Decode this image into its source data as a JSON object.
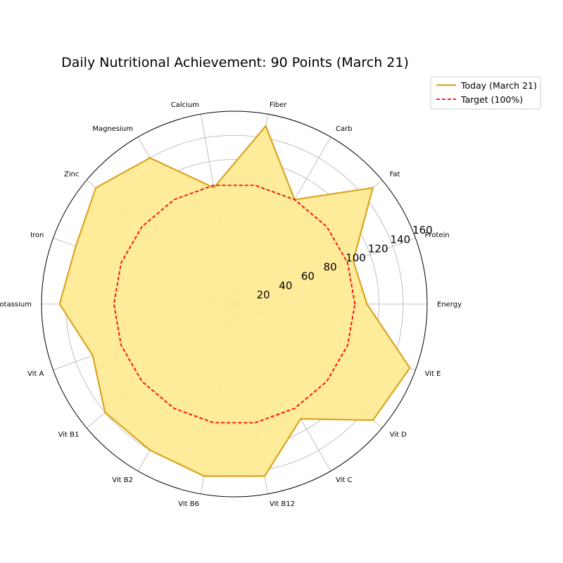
{
  "chart_data": {
    "type": "radar",
    "title": "Daily Nutritional Achievement: 90 Points (March 21)",
    "categories": [
      "Energy",
      "Protein",
      "Fat",
      "Carb",
      "Fiber",
      "Calcium",
      "Magnesium",
      "Zinc",
      "Iron",
      "Potassium",
      "Vit A",
      "Vit B1",
      "Vit B2",
      "Vit B6",
      "Vit B12",
      "Vit C",
      "Vit D",
      "Vit E"
    ],
    "rticks": [
      20,
      40,
      60,
      80,
      100,
      120,
      140,
      160
    ],
    "rlim": [
      0,
      160
    ],
    "grid": true,
    "legend_position": "top-right",
    "series": [
      {
        "name": "Today (March 21)",
        "values": [
          110,
          105,
          150,
          100,
          150,
          98,
          140,
          150,
          140,
          145,
          125,
          140,
          140,
          145,
          145,
          110,
          150,
          155
        ],
        "color": "#DAA520",
        "fill": "#FFEB96",
        "style": "solid"
      },
      {
        "name": "Target (100%)",
        "values": [
          100,
          100,
          100,
          100,
          100,
          100,
          100,
          100,
          100,
          100,
          100,
          100,
          100,
          100,
          100,
          100,
          100,
          100
        ],
        "color": "#FF0000",
        "style": "dashed"
      }
    ]
  }
}
